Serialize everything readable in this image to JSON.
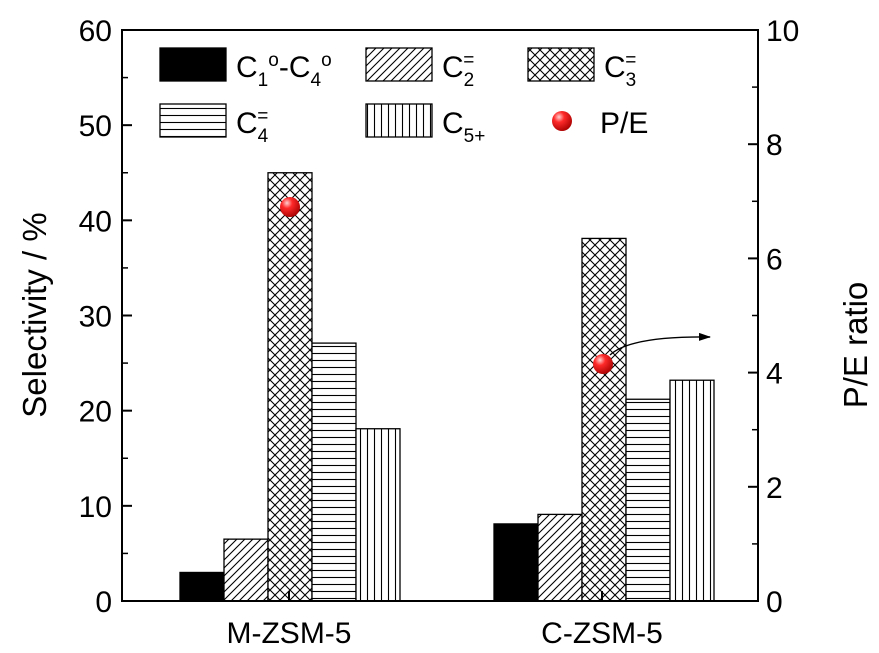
{
  "chart_data": {
    "type": "bar",
    "categories": [
      "M-ZSM-5",
      "C-ZSM-5"
    ],
    "ylabel": "Selectivity / %",
    "y2label": "P/E ratio",
    "ylim": [
      0,
      60
    ],
    "y2lim": [
      0,
      10
    ],
    "yticks": [
      "0",
      "10",
      "20",
      "30",
      "40",
      "50",
      "60"
    ],
    "y2ticks": [
      "0",
      "2",
      "4",
      "6",
      "8",
      "10"
    ],
    "legend_position": "top",
    "series": [
      {
        "name": "C1o-C4o",
        "label_main": "C",
        "label_parts": [
          "1",
          "o",
          "-C",
          "4",
          "o"
        ],
        "pattern": "solid-black",
        "values": [
          3.0,
          8.1
        ]
      },
      {
        "name": "C2=",
        "label_main": "C",
        "label_sub": "2",
        "label_sup": "=",
        "pattern": "diagonal",
        "values": [
          6.5,
          9.1
        ]
      },
      {
        "name": "C3=",
        "label_main": "C",
        "label_sub": "3",
        "label_sup": "=",
        "pattern": "crosshatch",
        "values": [
          45.0,
          38.1
        ]
      },
      {
        "name": "C4=",
        "label_main": "C",
        "label_sub": "4",
        "label_sup": "=",
        "pattern": "horizontal",
        "values": [
          27.1,
          21.2
        ]
      },
      {
        "name": "C5+",
        "label_main": "C",
        "label_sub": "5+",
        "pattern": "vertical",
        "values": [
          18.1,
          23.2
        ]
      }
    ],
    "secondary_series": {
      "name": "P/E",
      "axis": "right",
      "marker": "red-sphere",
      "values": [
        6.9,
        4.15
      ]
    },
    "annotation": "arrow pointing from P/E marker toward right axis"
  }
}
